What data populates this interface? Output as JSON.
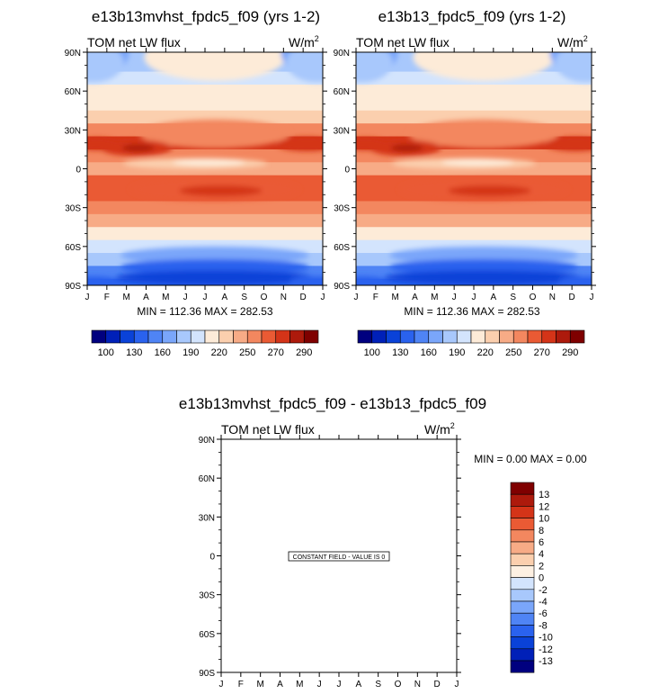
{
  "colors": {
    "palette": [
      "#00007f",
      "#0020b8",
      "#0a42d8",
      "#2a62ee",
      "#4f84f5",
      "#7aa6fa",
      "#a8c8fc",
      "#d3e4fd",
      "#fdebd8",
      "#fbcfae",
      "#f7ab86",
      "#f3875f",
      "#ea5a34",
      "#d43418",
      "#ad1a0c",
      "#7f0000"
    ],
    "diff_palette": [
      "#00007f",
      "#0020b8",
      "#0a42d8",
      "#2a62ee",
      "#4f84f5",
      "#7aa6fa",
      "#a8c8fc",
      "#d3e4fd",
      "#fdf0e2",
      "#fbcfae",
      "#f7ab86",
      "#f3875f",
      "#ea5a34",
      "#d43418",
      "#ad1a0c",
      "#7f0000"
    ]
  },
  "chart_data": [
    {
      "type": "heatmap",
      "title": "e13b13mvhst_fpdc5_f09 (yrs 1-2)",
      "left_label": "TOM net LW flux",
      "units_base": "W/m",
      "units_exp": "2",
      "x_ticks": [
        "J",
        "F",
        "M",
        "A",
        "M",
        "J",
        "J",
        "A",
        "S",
        "O",
        "N",
        "D",
        "J"
      ],
      "y_ticks": [
        "90N",
        "60N",
        "30N",
        "0",
        "30S",
        "60S",
        "90S"
      ],
      "ylim": [
        -90,
        90
      ],
      "stats": "MIN = 112.36 MAX = 282.53",
      "min": 112.36,
      "max": 282.53,
      "colorbar_labels": [
        "100",
        "130",
        "160",
        "190",
        "220",
        "250",
        "270",
        "290"
      ],
      "zonal_profile": {
        "lat": [
          90,
          80,
          70,
          60,
          50,
          40,
          30,
          20,
          10,
          0,
          -10,
          -20,
          -30,
          -40,
          -50,
          -60,
          -70,
          -80,
          -90
        ],
        "value": [
          180,
          185,
          195,
          205,
          215,
          230,
          250,
          270,
          250,
          240,
          268,
          265,
          255,
          235,
          215,
          195,
          175,
          150,
          130
        ]
      }
    },
    {
      "type": "heatmap",
      "title": "e13b13_fpdc5_f09 (yrs 1-2)",
      "left_label": "TOM net LW flux",
      "units_base": "W/m",
      "units_exp": "2",
      "x_ticks": [
        "J",
        "F",
        "M",
        "A",
        "M",
        "J",
        "J",
        "A",
        "S",
        "O",
        "N",
        "D",
        "J"
      ],
      "y_ticks": [
        "90N",
        "60N",
        "30N",
        "0",
        "30S",
        "60S",
        "90S"
      ],
      "ylim": [
        -90,
        90
      ],
      "stats": "MIN = 112.36 MAX = 282.53",
      "min": 112.36,
      "max": 282.53,
      "colorbar_labels": [
        "100",
        "130",
        "160",
        "190",
        "220",
        "250",
        "270",
        "290"
      ]
    },
    {
      "type": "heatmap",
      "title": "e13b13mvhst_fpdc5_f09 - e13b13_fpdc5_f09",
      "left_label": "TOM net LW flux",
      "units_base": "W/m",
      "units_exp": "2",
      "x_ticks": [
        "J",
        "F",
        "M",
        "A",
        "M",
        "J",
        "J",
        "A",
        "S",
        "O",
        "N",
        "D",
        "J"
      ],
      "y_ticks": [
        "90N",
        "60N",
        "30N",
        "0",
        "30S",
        "60S",
        "90S"
      ],
      "ylim": [
        -90,
        90
      ],
      "stats": "MIN =   0.00 MAX =   0.00",
      "min": 0.0,
      "max": 0.0,
      "annotation": "CONSTANT FIELD - VALUE IS 0",
      "colorbar_labels": [
        "13",
        "12",
        "10",
        "8",
        "6",
        "4",
        "2",
        "0",
        "-2",
        "-4",
        "-6",
        "-8",
        "-10",
        "-12",
        "-13"
      ]
    }
  ]
}
